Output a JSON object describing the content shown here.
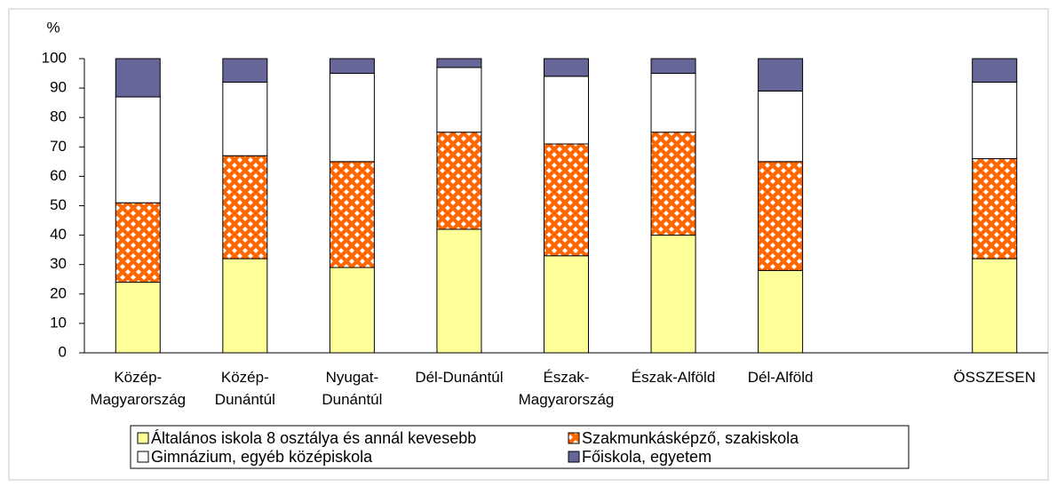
{
  "chart_data": {
    "type": "stacked_bar",
    "y_label": "%",
    "categories": [
      "Közép-\nMagyarország",
      "Közép-\nDunántúl",
      "Nyugat-\nDunántúl",
      "Dél-Dunántúl",
      "Észak-\nMagyarország",
      "Észak-Alföld",
      "Dél-Alföld",
      null,
      "ÖSSZESEN"
    ],
    "series": [
      {
        "name": "Általános iskola 8 osztálya és annál kevesebb",
        "color": "#ffff99",
        "values": [
          24,
          32,
          29,
          42,
          33,
          40,
          28,
          null,
          32
        ]
      },
      {
        "name": "Szakmunkásképző, szakiskola",
        "color": "#ff6600",
        "pattern": "diamond",
        "values": [
          27,
          35,
          36,
          33,
          38,
          35,
          37,
          null,
          34
        ]
      },
      {
        "name": "Gimnázium, egyéb középiskola",
        "color": "#ffffff",
        "values": [
          36,
          25,
          30,
          22,
          23,
          20,
          24,
          null,
          26
        ]
      },
      {
        "name": "Főiskola, egyetem",
        "color": "#666699",
        "values": [
          13,
          8,
          5,
          3,
          6,
          5,
          11,
          null,
          8
        ]
      }
    ],
    "ylim": [
      0,
      100
    ],
    "yticks": [
      0,
      10,
      20,
      30,
      40,
      50,
      60,
      70,
      80,
      90,
      100
    ]
  }
}
